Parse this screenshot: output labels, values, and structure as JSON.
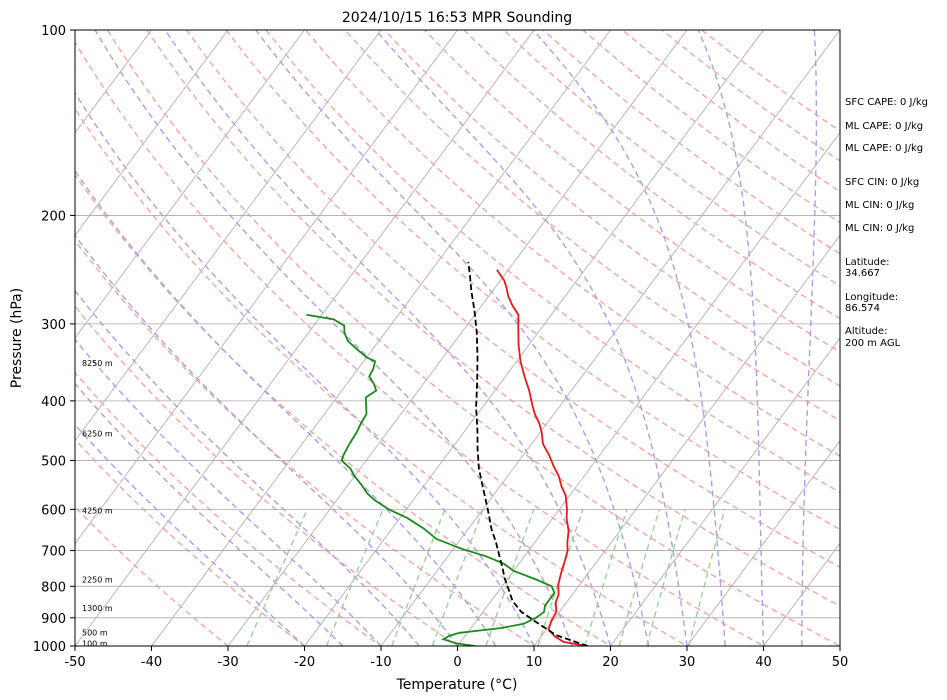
{
  "chart_data": {
    "type": "line",
    "title": "2024/10/15 16:53 MPR Sounding",
    "xlabel": "Temperature (°C)",
    "ylabel": "Pressure (hPa)",
    "xlim": [
      -50,
      50
    ],
    "ylim": [
      1000,
      100
    ],
    "yscale": "log",
    "x_ticks": [
      -50,
      -40,
      -30,
      -20,
      -10,
      0,
      10,
      20,
      30,
      40,
      50
    ],
    "y_ticks": [
      100,
      200,
      300,
      400,
      500,
      600,
      700,
      800,
      900,
      1000
    ],
    "grid": true,
    "colors": {
      "temperature": "#e41a1c",
      "dewpoint": "#1a8a1a",
      "parcel": "#000000",
      "isotherm": "#aaaaaa",
      "dry_adiabat": "#f4a6a6",
      "moist_adiabat": "#a8a0ee",
      "mixing_ratio": "#9fcf9f"
    },
    "series": [
      {
        "key": "temperature",
        "points": [
          [
            17,
            1000
          ],
          [
            13.5,
            985
          ],
          [
            11.8,
            965
          ],
          [
            10.3,
            940
          ],
          [
            9.8,
            910
          ],
          [
            9.6,
            880
          ],
          [
            8.6,
            850
          ],
          [
            8.2,
            825
          ],
          [
            7.2,
            795
          ],
          [
            6.4,
            760
          ],
          [
            5.8,
            730
          ],
          [
            5.1,
            700
          ],
          [
            4.3,
            680
          ],
          [
            3.3,
            650
          ],
          [
            1.8,
            620
          ],
          [
            1,
            600
          ],
          [
            -0.5,
            570
          ],
          [
            -2,
            550
          ],
          [
            -3.3,
            530
          ],
          [
            -5,
            510
          ],
          [
            -6.6,
            490
          ],
          [
            -8.5,
            470
          ],
          [
            -9.8,
            450
          ],
          [
            -11,
            435
          ],
          [
            -12.5,
            420
          ],
          [
            -13.8,
            405
          ],
          [
            -15.5,
            385
          ],
          [
            -17.5,
            365
          ],
          [
            -19.5,
            345
          ],
          [
            -21.3,
            325
          ],
          [
            -23,
            305
          ],
          [
            -24.3,
            290
          ],
          [
            -26,
            280
          ],
          [
            -27.5,
            270
          ],
          [
            -28.5,
            262
          ],
          [
            -29.5,
            255
          ],
          [
            -30.5,
            250
          ],
          [
            -31.5,
            245
          ]
        ]
      },
      {
        "key": "dewpoint",
        "points": [
          [
            2.3,
            1000
          ],
          [
            -0.5,
            990
          ],
          [
            -2.5,
            975
          ],
          [
            -2,
            962
          ],
          [
            -1,
            952
          ],
          [
            1,
            945
          ],
          [
            4,
            935
          ],
          [
            6.5,
            920
          ],
          [
            7.5,
            900
          ],
          [
            8,
            880
          ],
          [
            7.5,
            860
          ],
          [
            7.5,
            850
          ],
          [
            7.5,
            835
          ],
          [
            7.5,
            820
          ],
          [
            6.5,
            800
          ],
          [
            3.8,
            780
          ],
          [
            0,
            755
          ],
          [
            -2,
            735
          ],
          [
            -5,
            715
          ],
          [
            -9,
            695
          ],
          [
            -13.2,
            670
          ],
          [
            -15.8,
            645
          ],
          [
            -19,
            620
          ],
          [
            -22.3,
            600
          ],
          [
            -25,
            580
          ],
          [
            -26.7,
            565
          ],
          [
            -28,
            550
          ],
          [
            -30,
            530
          ],
          [
            -31.3,
            515
          ],
          [
            -33.2,
            500
          ],
          [
            -33.5,
            490
          ],
          [
            -33.8,
            470
          ],
          [
            -34,
            450
          ],
          [
            -34.3,
            435
          ],
          [
            -34.5,
            420
          ],
          [
            -35.5,
            405
          ],
          [
            -36.2,
            395
          ],
          [
            -35.5,
            385
          ],
          [
            -36.5,
            375
          ],
          [
            -37.8,
            365
          ],
          [
            -38,
            355
          ],
          [
            -38.5,
            345
          ],
          [
            -40,
            340
          ],
          [
            -42,
            330
          ],
          [
            -44,
            320
          ],
          [
            -45.3,
            310
          ],
          [
            -46,
            302
          ],
          [
            -48,
            295
          ],
          [
            -52,
            290
          ]
        ]
      },
      {
        "key": "parcel",
        "points": [
          [
            17,
            1000
          ],
          [
            11.8,
            960
          ],
          [
            8,
            915
          ],
          [
            5,
            880
          ],
          [
            2.8,
            845
          ],
          [
            1.2,
            810
          ],
          [
            -0.5,
            775
          ],
          [
            -1.8,
            745
          ],
          [
            -3.5,
            710
          ],
          [
            -5,
            680
          ],
          [
            -7,
            645
          ],
          [
            -8.8,
            610
          ],
          [
            -10.5,
            580
          ],
          [
            -12.3,
            550
          ],
          [
            -14.5,
            515
          ],
          [
            -16.5,
            480
          ],
          [
            -18.5,
            445
          ],
          [
            -20.8,
            410
          ],
          [
            -23,
            375
          ],
          [
            -25.5,
            340
          ],
          [
            -28,
            310
          ],
          [
            -30.5,
            285
          ],
          [
            -32.8,
            265
          ],
          [
            -34.5,
            250
          ],
          [
            -36,
            238
          ]
        ]
      }
    ],
    "altitude_labels": [
      {
        "text": "100 m",
        "p": 990
      },
      {
        "text": "500 m",
        "p": 950
      },
      {
        "text": "1300 m",
        "p": 868
      },
      {
        "text": "2250 m",
        "p": 780
      },
      {
        "text": "4250 m",
        "p": 603
      },
      {
        "text": "6250 m",
        "p": 452
      },
      {
        "text": "8250 m",
        "p": 347
      }
    ],
    "info_lines": [
      "SFC CAPE: 0 J/kg",
      "ML CAPE: 0 J/kg",
      "ML CAPE: 0 J/kg",
      "SFC CIN: 0 J/kg",
      "ML CIN: 0 J/kg",
      "ML CIN: 0 J/kg",
      "Latitude:",
      "34.667",
      "Longitude:",
      "86.574",
      "Altitude:",
      "200 m AGL"
    ]
  }
}
